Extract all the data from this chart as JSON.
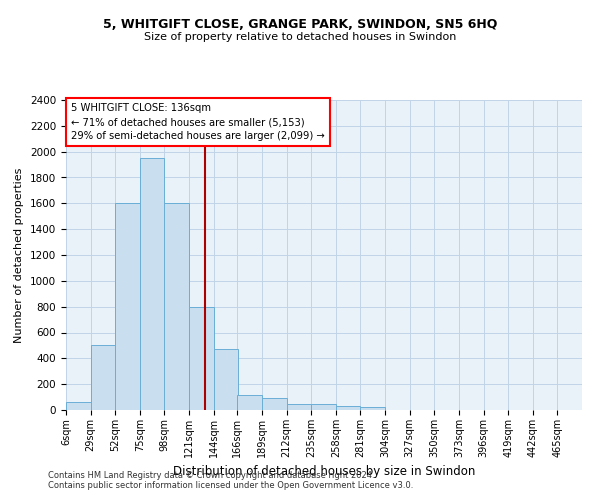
{
  "title1": "5, WHITGIFT CLOSE, GRANGE PARK, SWINDON, SN5 6HQ",
  "title2": "Size of property relative to detached houses in Swindon",
  "xlabel": "Distribution of detached houses by size in Swindon",
  "ylabel": "Number of detached properties",
  "footer1": "Contains HM Land Registry data © Crown copyright and database right 2024.",
  "footer2": "Contains public sector information licensed under the Open Government Licence v3.0.",
  "annotation_title": "5 WHITGIFT CLOSE: 136sqm",
  "annotation_line1": "← 71% of detached houses are smaller (5,153)",
  "annotation_line2": "29% of semi-detached houses are larger (2,099) →",
  "property_size": 136,
  "bar_edge_color": "#6aaed6",
  "bar_face_color": "#c9dff0",
  "vline_color": "#aa0000",
  "grid_color": "#c0d4e8",
  "bg_color": "#e8f2f8",
  "categories": [
    "6sqm",
    "29sqm",
    "52sqm",
    "75sqm",
    "98sqm",
    "121sqm",
    "144sqm",
    "166sqm",
    "189sqm",
    "212sqm",
    "235sqm",
    "258sqm",
    "281sqm",
    "304sqm",
    "327sqm",
    "350sqm",
    "373sqm",
    "396sqm",
    "419sqm",
    "442sqm",
    "465sqm"
  ],
  "bin_edges": [
    6,
    29,
    52,
    75,
    98,
    121,
    144,
    166,
    189,
    212,
    235,
    258,
    281,
    304,
    327,
    350,
    373,
    396,
    419,
    442,
    465,
    488
  ],
  "values": [
    60,
    500,
    1600,
    1950,
    1600,
    800,
    470,
    120,
    90,
    50,
    50,
    30,
    20,
    0,
    0,
    0,
    0,
    0,
    0,
    0,
    0
  ],
  "ylim": [
    0,
    2400
  ],
  "yticks": [
    0,
    200,
    400,
    600,
    800,
    1000,
    1200,
    1400,
    1600,
    1800,
    2000,
    2200,
    2400
  ]
}
